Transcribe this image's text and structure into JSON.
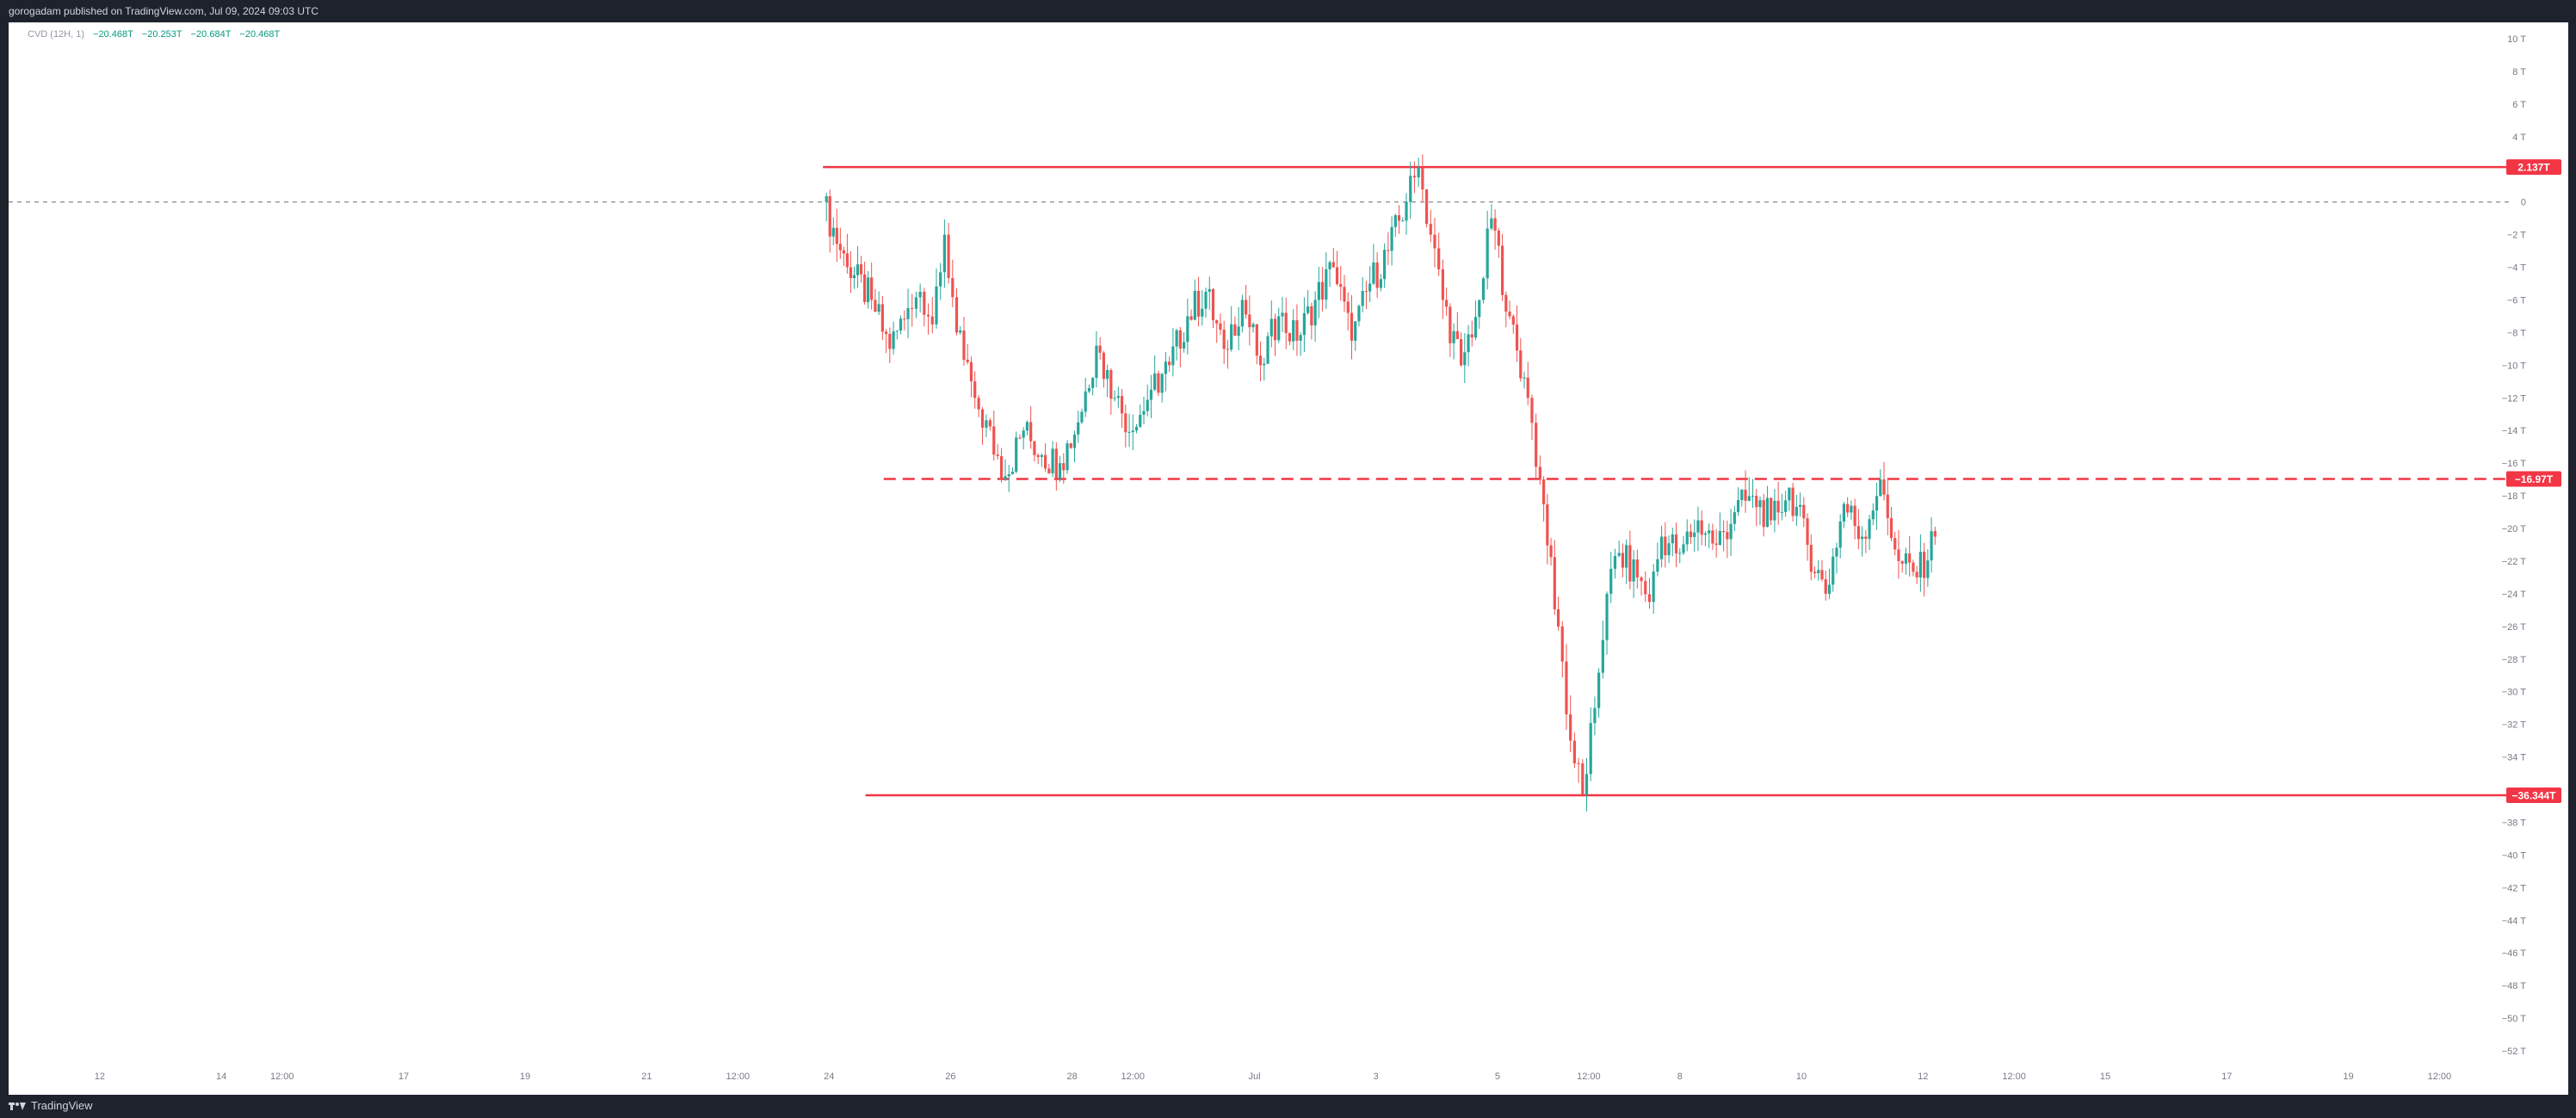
{
  "header": {
    "publisher_text": "gorogadam published on TradingView.com, Jul 09, 2024 09:03 UTC"
  },
  "footer": {
    "logo_text": "TradingView"
  },
  "legend": {
    "indicator": "CVD (12H, 1)",
    "values": [
      "−20.468T",
      "−20.253T",
      "−20.684T",
      "−20.468T"
    ]
  },
  "colors": {
    "up": "#26a69a",
    "down": "#ef5350",
    "level_line": "#f23645",
    "label_bg": "#f23645"
  },
  "chart_data": {
    "type": "candlestick",
    "title": "",
    "xlabel": "",
    "ylabel": "",
    "ylim": [
      -53,
      11
    ],
    "y_unit": "T",
    "y_ticks": [
      {
        "value": 10,
        "label": "10 T"
      },
      {
        "value": 8,
        "label": "8 T"
      },
      {
        "value": 6,
        "label": "6 T"
      },
      {
        "value": 4,
        "label": "4 T"
      },
      {
        "value": 0,
        "label": "0"
      },
      {
        "value": -2,
        "label": "−2 T"
      },
      {
        "value": -4,
        "label": "−4 T"
      },
      {
        "value": -6,
        "label": "−6 T"
      },
      {
        "value": -8,
        "label": "−8 T"
      },
      {
        "value": -10,
        "label": "−10 T"
      },
      {
        "value": -12,
        "label": "−12 T"
      },
      {
        "value": -14,
        "label": "−14 T"
      },
      {
        "value": -16,
        "label": "−16 T"
      },
      {
        "value": -18,
        "label": "−18 T"
      },
      {
        "value": -20,
        "label": "−20 T"
      },
      {
        "value": -22,
        "label": "−22 T"
      },
      {
        "value": -24,
        "label": "−24 T"
      },
      {
        "value": -26,
        "label": "−26 T"
      },
      {
        "value": -28,
        "label": "−28 T"
      },
      {
        "value": -30,
        "label": "−30 T"
      },
      {
        "value": -32,
        "label": "−32 T"
      },
      {
        "value": -34,
        "label": "−34 T"
      },
      {
        "value": -38,
        "label": "−38 T"
      },
      {
        "value": -40,
        "label": "−40 T"
      },
      {
        "value": -42,
        "label": "−42 T"
      },
      {
        "value": -44,
        "label": "−44 T"
      },
      {
        "value": -46,
        "label": "−46 T"
      },
      {
        "value": -48,
        "label": "−48 T"
      },
      {
        "value": -50,
        "label": "−50 T"
      },
      {
        "value": -52,
        "label": "−52 T"
      }
    ],
    "x_ticks": [
      "12",
      "14",
      "12:00",
      "17",
      "19",
      "21",
      "12:00",
      "24",
      "26",
      "28",
      "12:00",
      "Jul",
      "3",
      "5",
      "12:00",
      "8",
      "10",
      "12",
      "12:00",
      "15",
      "17",
      "19",
      "12:00"
    ],
    "x_tick_days": [
      12,
      14,
      15,
      17,
      19,
      21,
      22.5,
      24,
      26,
      28,
      29,
      31,
      33,
      35,
      36.5,
      38,
      40,
      42,
      43.5,
      45,
      47,
      49,
      50.5
    ],
    "x_range_days": [
      10.5,
      51.5
    ],
    "zero_line": 0,
    "levels": [
      {
        "value": 2.137,
        "label": "2.137T",
        "style": "solid",
        "start_day": 23.9
      },
      {
        "value": -16.97,
        "label": "−16.97T",
        "style": "dashed",
        "start_day": 24.9
      },
      {
        "value": -36.344,
        "label": "−36.344T",
        "style": "solid",
        "start_day": 24.6
      }
    ],
    "series": [
      {
        "x": 23.9,
        "y": 0
      },
      {
        "x": 24.3,
        "y": -4
      },
      {
        "x": 24.7,
        "y": -6
      },
      {
        "x": 25.0,
        "y": -9
      },
      {
        "x": 25.3,
        "y": -6.5
      },
      {
        "x": 25.5,
        "y": -5.5
      },
      {
        "x": 25.7,
        "y": -7.5
      },
      {
        "x": 25.9,
        "y": -2
      },
      {
        "x": 26.1,
        "y": -8
      },
      {
        "x": 26.4,
        "y": -12
      },
      {
        "x": 26.9,
        "y": -16.8
      },
      {
        "x": 27.2,
        "y": -14
      },
      {
        "x": 27.5,
        "y": -15.5
      },
      {
        "x": 27.8,
        "y": -16
      },
      {
        "x": 28.1,
        "y": -13.5
      },
      {
        "x": 28.4,
        "y": -8.8
      },
      {
        "x": 28.7,
        "y": -12
      },
      {
        "x": 29.0,
        "y": -14
      },
      {
        "x": 29.3,
        "y": -11.5
      },
      {
        "x": 29.6,
        "y": -10
      },
      {
        "x": 29.9,
        "y": -7
      },
      {
        "x": 30.2,
        "y": -5.5
      },
      {
        "x": 30.5,
        "y": -9
      },
      {
        "x": 30.8,
        "y": -6
      },
      {
        "x": 31.1,
        "y": -10
      },
      {
        "x": 31.4,
        "y": -7
      },
      {
        "x": 31.7,
        "y": -8.5
      },
      {
        "x": 32.0,
        "y": -6
      },
      {
        "x": 32.3,
        "y": -4
      },
      {
        "x": 32.6,
        "y": -8.5
      },
      {
        "x": 32.9,
        "y": -5
      },
      {
        "x": 33.2,
        "y": -3
      },
      {
        "x": 33.5,
        "y": 0
      },
      {
        "x": 33.7,
        "y": 2.1
      },
      {
        "x": 33.9,
        "y": -2
      },
      {
        "x": 34.1,
        "y": -6
      },
      {
        "x": 34.4,
        "y": -10
      },
      {
        "x": 34.7,
        "y": -6
      },
      {
        "x": 34.9,
        "y": -1
      },
      {
        "x": 35.2,
        "y": -7
      },
      {
        "x": 35.5,
        "y": -12
      },
      {
        "x": 35.7,
        "y": -17
      },
      {
        "x": 36.0,
        "y": -26
      },
      {
        "x": 36.2,
        "y": -33
      },
      {
        "x": 36.4,
        "y": -36.3
      },
      {
        "x": 36.6,
        "y": -31
      },
      {
        "x": 36.8,
        "y": -24
      },
      {
        "x": 37.0,
        "y": -21.5
      },
      {
        "x": 37.3,
        "y": -23
      },
      {
        "x": 37.5,
        "y": -24.5
      },
      {
        "x": 37.7,
        "y": -20.5
      },
      {
        "x": 38.0,
        "y": -21.5
      },
      {
        "x": 38.3,
        "y": -19.5
      },
      {
        "x": 38.6,
        "y": -21
      },
      {
        "x": 38.9,
        "y": -19
      },
      {
        "x": 39.2,
        "y": -18
      },
      {
        "x": 39.5,
        "y": -19.5
      },
      {
        "x": 39.8,
        "y": -17.5
      },
      {
        "x": 40.1,
        "y": -21
      },
      {
        "x": 40.4,
        "y": -24
      },
      {
        "x": 40.7,
        "y": -18.5
      },
      {
        "x": 41.0,
        "y": -20.5
      },
      {
        "x": 41.3,
        "y": -17
      },
      {
        "x": 41.6,
        "y": -22
      },
      {
        "x": 41.9,
        "y": -23
      },
      {
        "x": 42.2,
        "y": -20.5
      }
    ]
  }
}
